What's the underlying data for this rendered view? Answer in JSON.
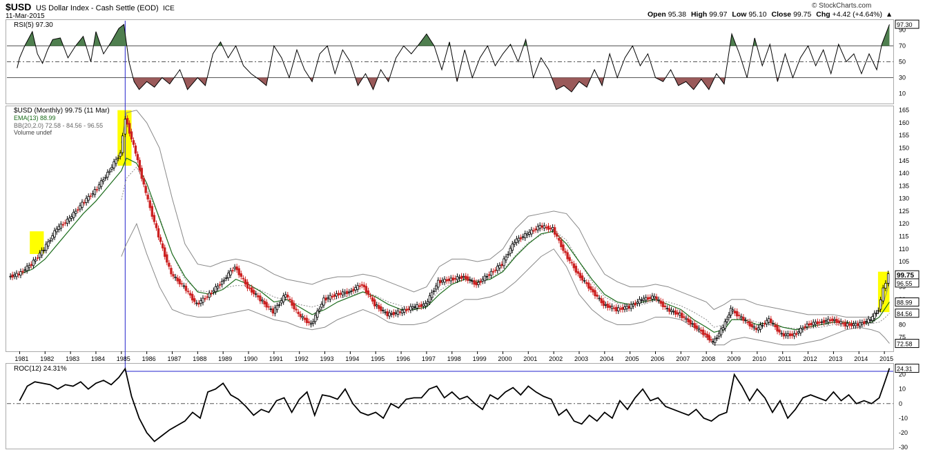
{
  "header": {
    "symbol": "$USD",
    "name": "US Dollar Index - Cash Settle (EOD)",
    "exchange": "ICE",
    "date": "11-Mar-2015",
    "copyright": "© StockCharts.com",
    "quote": {
      "open_label": "Open",
      "open": "95.38",
      "high_label": "High",
      "high": "99.97",
      "low_label": "Low",
      "low": "95.10",
      "close_label": "Close",
      "close": "99.75",
      "chg_label": "Chg",
      "chg": "+4.42 (+4.64%)"
    }
  },
  "colors": {
    "up": "#000000",
    "down": "#cc2222",
    "ema": "#1a6b1a",
    "bb": "#888888",
    "rsi_over": "#4f7f4f",
    "rsi_under": "#9a5a5a",
    "highlight": "#ffff00",
    "crosshair": "#2222cc",
    "roc": "#000000"
  },
  "chart_data": [
    {
      "type": "line",
      "panel": "RSI",
      "legend": "RSI(5) 97.30",
      "last_label": "97.30",
      "y_ticks": [
        "90",
        "70",
        "50",
        "30",
        "10"
      ],
      "ylim": [
        0,
        100
      ],
      "levels": [
        70,
        50,
        30
      ],
      "x_years": [
        1980.9,
        1981.0,
        1981.2,
        1981.5,
        1981.7,
        1981.9,
        1982.1,
        1982.3,
        1982.6,
        1982.9,
        1983.2,
        1983.5,
        1983.8,
        1984.0,
        1984.3,
        1984.6,
        1984.9,
        1985.1,
        1985.3,
        1985.5,
        1985.7,
        1986.0,
        1986.3,
        1986.6,
        1986.9,
        1987.3,
        1987.6,
        1988.0,
        1988.3,
        1988.6,
        1988.9,
        1989.2,
        1989.5,
        1989.8,
        1990.1,
        1990.4,
        1990.7,
        1991.0,
        1991.3,
        1991.6,
        1991.9,
        1992.2,
        1992.5,
        1992.8,
        1993.1,
        1993.4,
        1993.7,
        1994.0,
        1994.3,
        1994.6,
        1994.9,
        1995.2,
        1995.5,
        1995.8,
        1996.1,
        1996.4,
        1996.7,
        1997.0,
        1997.3,
        1997.6,
        1997.9,
        1998.2,
        1998.5,
        1998.8,
        1999.1,
        1999.4,
        1999.7,
        2000.0,
        2000.3,
        2000.6,
        2000.9,
        2001.2,
        2001.5,
        2001.8,
        2002.1,
        2002.4,
        2002.7,
        2003.0,
        2003.3,
        2003.6,
        2003.9,
        2004.2,
        2004.5,
        2004.8,
        2005.1,
        2005.4,
        2005.7,
        2006.0,
        2006.3,
        2006.6,
        2006.9,
        2007.2,
        2007.5,
        2007.8,
        2008.1,
        2008.4,
        2008.7,
        2009.0,
        2009.3,
        2009.6,
        2009.9,
        2010.2,
        2010.5,
        2010.8,
        2011.1,
        2011.4,
        2011.7,
        2012.0,
        2012.3,
        2012.6,
        2012.9,
        2013.2,
        2013.5,
        2013.8,
        2014.1,
        2014.4,
        2014.7,
        2014.9,
        2015.2
      ],
      "values": [
        42,
        55,
        70,
        88,
        60,
        48,
        65,
        78,
        80,
        55,
        70,
        82,
        50,
        88,
        60,
        75,
        92,
        97,
        50,
        25,
        15,
        25,
        18,
        30,
        22,
        40,
        15,
        30,
        20,
        60,
        75,
        55,
        70,
        45,
        35,
        28,
        20,
        70,
        55,
        30,
        65,
        40,
        25,
        60,
        70,
        35,
        65,
        50,
        20,
        35,
        15,
        40,
        25,
        55,
        70,
        60,
        72,
        85,
        70,
        40,
        75,
        25,
        65,
        30,
        55,
        70,
        45,
        60,
        72,
        50,
        78,
        30,
        55,
        40,
        15,
        20,
        12,
        25,
        18,
        40,
        20,
        60,
        30,
        55,
        70,
        45,
        60,
        30,
        25,
        40,
        20,
        25,
        15,
        28,
        15,
        35,
        22,
        85,
        60,
        30,
        80,
        45,
        72,
        25,
        60,
        30,
        55,
        70,
        45,
        65,
        35,
        72,
        50,
        60,
        35,
        60,
        40,
        72,
        97
      ]
    },
    {
      "type": "candlestick",
      "panel": "price",
      "legend": [
        "$USD (Monthly) 99.75 (11 Mar)",
        "EMA(13) 88.99",
        "BB(20,2.0) 72.58 - 84.56 - 96.55",
        "Volume undef"
      ],
      "y_ticks": [
        "165",
        "160",
        "155",
        "150",
        "145",
        "140",
        "135",
        "130",
        "125",
        "120",
        "115",
        "110",
        "105",
        "100",
        "95",
        "90",
        "85",
        "80",
        "75"
      ],
      "ylim": [
        70,
        166
      ],
      "right_labels": [
        {
          "text": "99.75",
          "v": 99.75
        },
        {
          "text": "96.55",
          "v": 96.55
        },
        {
          "text": "88.99",
          "v": 88.99
        },
        {
          "text": "84.56",
          "v": 84.56
        },
        {
          "text": "72.58",
          "v": 72.58
        }
      ],
      "x_ticks": [
        "1981",
        "1982",
        "1983",
        "1984",
        "1985",
        "1986",
        "1987",
        "1988",
        "1989",
        "1990",
        "1991",
        "1992",
        "1993",
        "1994",
        "1995",
        "1996",
        "1997",
        "1998",
        "1999",
        "2000",
        "2001",
        "2002",
        "2003",
        "2004",
        "2005",
        "2006",
        "2007",
        "2008",
        "2009",
        "2010",
        "2011",
        "2012",
        "2013",
        "2014",
        "2015"
      ],
      "x_years": [
        1980.6,
        1981.0,
        1981.5,
        1982.0,
        1982.5,
        1983.0,
        1983.5,
        1984.0,
        1984.5,
        1985.0,
        1985.2,
        1985.6,
        1986.0,
        1986.5,
        1987.0,
        1987.5,
        1988.0,
        1988.5,
        1989.0,
        1989.5,
        1990.0,
        1990.5,
        1991.0,
        1991.5,
        1992.0,
        1992.5,
        1993.0,
        1993.5,
        1994.0,
        1994.5,
        1995.0,
        1995.5,
        1996.0,
        1996.5,
        1997.0,
        1997.5,
        1998.0,
        1998.5,
        1999.0,
        1999.5,
        2000.0,
        2000.5,
        2001.0,
        2001.5,
        2002.0,
        2002.5,
        2003.0,
        2003.5,
        2004.0,
        2004.5,
        2005.0,
        2005.5,
        2006.0,
        2006.5,
        2007.0,
        2007.5,
        2008.0,
        2008.3,
        2008.7,
        2009.0,
        2009.5,
        2010.0,
        2010.5,
        2011.0,
        2011.5,
        2012.0,
        2012.5,
        2013.0,
        2013.5,
        2014.0,
        2014.5,
        2014.8,
        2015.0,
        2015.2
      ],
      "close": [
        99,
        100,
        104,
        110,
        118,
        122,
        128,
        133,
        140,
        148,
        162,
        148,
        132,
        115,
        100,
        95,
        88,
        92,
        97,
        103,
        95,
        90,
        85,
        92,
        84,
        80,
        90,
        92,
        93,
        96,
        88,
        84,
        85,
        87,
        88,
        97,
        98,
        99,
        96,
        100,
        104,
        113,
        116,
        119,
        118,
        108,
        100,
        94,
        88,
        86,
        87,
        90,
        91,
        86,
        84,
        80,
        76,
        73,
        79,
        86,
        82,
        78,
        82,
        76,
        76,
        80,
        81,
        82,
        80,
        80,
        82,
        86,
        94,
        99.75
      ],
      "ema": [
        99,
        100,
        102,
        106,
        112,
        118,
        124,
        129,
        135,
        141,
        146,
        144,
        136,
        122,
        108,
        99,
        93,
        92,
        94,
        98,
        96,
        93,
        89,
        90,
        87,
        84,
        86,
        89,
        91,
        93,
        91,
        88,
        86,
        86,
        87,
        92,
        96,
        98,
        97,
        98,
        101,
        107,
        112,
        116,
        117,
        112,
        105,
        98,
        92,
        89,
        88,
        89,
        90,
        88,
        86,
        82,
        79,
        77,
        78,
        82,
        82,
        80,
        81,
        79,
        78,
        79,
        80,
        81,
        81,
        80,
        81,
        83,
        86,
        88.99
      ],
      "bb_upper": [
        null,
        null,
        null,
        null,
        null,
        null,
        null,
        null,
        null,
        152,
        164,
        165,
        160,
        150,
        130,
        112,
        104,
        103,
        105,
        106,
        105,
        103,
        100,
        98,
        97,
        96,
        98,
        99,
        99,
        100,
        99,
        97,
        95,
        93,
        95,
        103,
        106,
        106,
        105,
        106,
        110,
        118,
        123,
        124,
        125,
        124,
        118,
        108,
        100,
        97,
        95,
        95,
        96,
        95,
        93,
        91,
        89,
        86,
        88,
        90,
        90,
        88,
        87,
        86,
        85,
        84,
        84,
        84,
        83,
        83,
        83,
        85,
        90,
        96.55
      ],
      "bb_lower": [
        null,
        null,
        null,
        null,
        null,
        null,
        null,
        null,
        null,
        107,
        112,
        120,
        108,
        95,
        86,
        84,
        83,
        83,
        84,
        85,
        86,
        84,
        82,
        81,
        79,
        78,
        79,
        82,
        84,
        86,
        84,
        81,
        80,
        80,
        81,
        84,
        87,
        90,
        90,
        91,
        93,
        97,
        102,
        107,
        110,
        103,
        92,
        86,
        82,
        80,
        80,
        81,
        83,
        83,
        82,
        79,
        75,
        72,
        72,
        74,
        75,
        74,
        73,
        72,
        72,
        73,
        74,
        76,
        78,
        79,
        78,
        77,
        75,
        72.58
      ],
      "highlights": [
        {
          "x0": 1981.4,
          "x1": 1981.95,
          "y0": 108,
          "y1": 117
        },
        {
          "x0": 1984.85,
          "x1": 1985.4,
          "y0": 143,
          "y1": 165
        },
        {
          "x0": 2014.75,
          "x1": 2015.2,
          "y0": 85,
          "y1": 101
        }
      ],
      "crosshair_year": 1985.15
    },
    {
      "type": "line",
      "panel": "ROC",
      "legend": "ROC(12) 24.31%",
      "last_label": "24.31",
      "y_ticks": [
        "20",
        "10",
        "0",
        "-10",
        "-20",
        "-30"
      ],
      "ylim": [
        -30,
        26
      ],
      "zero_level": 0,
      "x_years": [
        1981.0,
        1981.3,
        1981.6,
        1981.9,
        1982.2,
        1982.5,
        1982.8,
        1983.1,
        1983.4,
        1983.7,
        1984.0,
        1984.3,
        1984.6,
        1984.9,
        1985.15,
        1985.4,
        1985.7,
        1986.0,
        1986.3,
        1986.6,
        1986.9,
        1987.2,
        1987.5,
        1987.8,
        1988.1,
        1988.4,
        1988.7,
        1989.0,
        1989.3,
        1989.6,
        1989.9,
        1990.2,
        1990.5,
        1990.8,
        1991.1,
        1991.4,
        1991.7,
        1992.0,
        1992.3,
        1992.6,
        1992.9,
        1993.2,
        1993.5,
        1993.8,
        1994.1,
        1994.4,
        1994.7,
        1995.0,
        1995.3,
        1995.6,
        1995.9,
        1996.2,
        1996.5,
        1996.8,
        1997.1,
        1997.4,
        1997.7,
        1998.0,
        1998.3,
        1998.6,
        1998.9,
        1999.2,
        1999.5,
        1999.8,
        2000.1,
        2000.4,
        2000.7,
        2001.0,
        2001.3,
        2001.6,
        2001.9,
        2002.2,
        2002.5,
        2002.8,
        2003.1,
        2003.4,
        2003.7,
        2004.0,
        2004.3,
        2004.6,
        2004.9,
        2005.2,
        2005.5,
        2005.8,
        2006.1,
        2006.4,
        2006.7,
        2007.0,
        2007.3,
        2007.6,
        2007.9,
        2008.2,
        2008.5,
        2008.8,
        2009.1,
        2009.4,
        2009.7,
        2010.0,
        2010.3,
        2010.6,
        2010.9,
        2011.2,
        2011.5,
        2011.8,
        2012.1,
        2012.4,
        2012.7,
        2013.0,
        2013.3,
        2013.6,
        2013.9,
        2014.2,
        2014.5,
        2014.8,
        2015.0,
        2015.2
      ],
      "values": [
        2,
        12,
        15,
        14,
        13,
        10,
        13,
        12,
        15,
        10,
        14,
        16,
        13,
        18,
        24,
        5,
        -10,
        -20,
        -26,
        -22,
        -18,
        -15,
        -12,
        -6,
        -10,
        8,
        10,
        14,
        6,
        3,
        -2,
        -8,
        -4,
        -6,
        2,
        4,
        -6,
        3,
        8,
        -8,
        6,
        5,
        3,
        10,
        0,
        -6,
        -8,
        -6,
        -10,
        0,
        -3,
        3,
        4,
        4,
        10,
        12,
        4,
        8,
        3,
        5,
        0,
        -4,
        6,
        3,
        8,
        11,
        6,
        12,
        8,
        5,
        3,
        -8,
        -4,
        -12,
        -14,
        -8,
        -12,
        -6,
        -10,
        2,
        -4,
        4,
        10,
        2,
        4,
        -2,
        -4,
        -6,
        -8,
        -4,
        -10,
        -12,
        -8,
        -6,
        20,
        12,
        2,
        10,
        4,
        -6,
        2,
        -10,
        -4,
        4,
        6,
        4,
        2,
        8,
        2,
        6,
        0,
        2,
        0,
        4,
        14,
        24.31
      ]
    }
  ]
}
